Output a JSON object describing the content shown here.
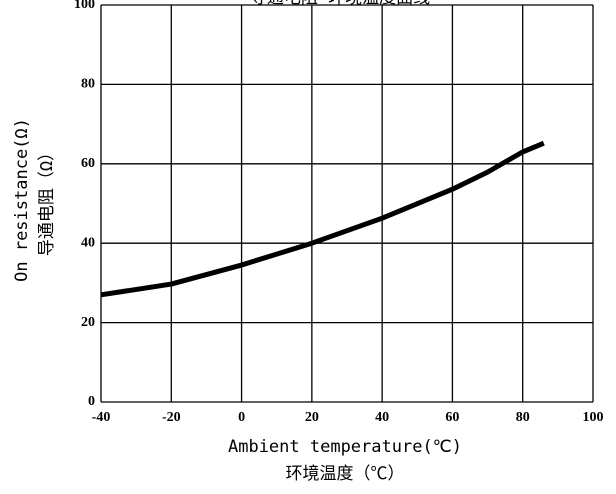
{
  "chart_data": {
    "type": "line",
    "title": "导通电阻-环境温度曲线",
    "x_label": [
      "Ambient temperature(℃)",
      "环境温度（℃）"
    ],
    "y_label": [
      "On resistance(Ω)",
      "导通电阻（Ω）"
    ],
    "x": [
      -40,
      -20,
      0,
      20,
      40,
      60,
      70,
      80,
      86
    ],
    "series": [
      {
        "color": "#000000",
        "values": [
          27,
          29.7,
          34.5,
          40,
          46.3,
          53.6,
          57.9,
          63,
          65.2
        ]
      }
    ],
    "xlim": [
      -40,
      100
    ],
    "xticks": [
      -40,
      -20,
      0,
      20,
      40,
      60,
      80,
      100
    ],
    "ylim": [
      0,
      100
    ],
    "yticks": [
      0,
      20,
      40,
      60,
      80,
      100
    ],
    "grid": true
  }
}
